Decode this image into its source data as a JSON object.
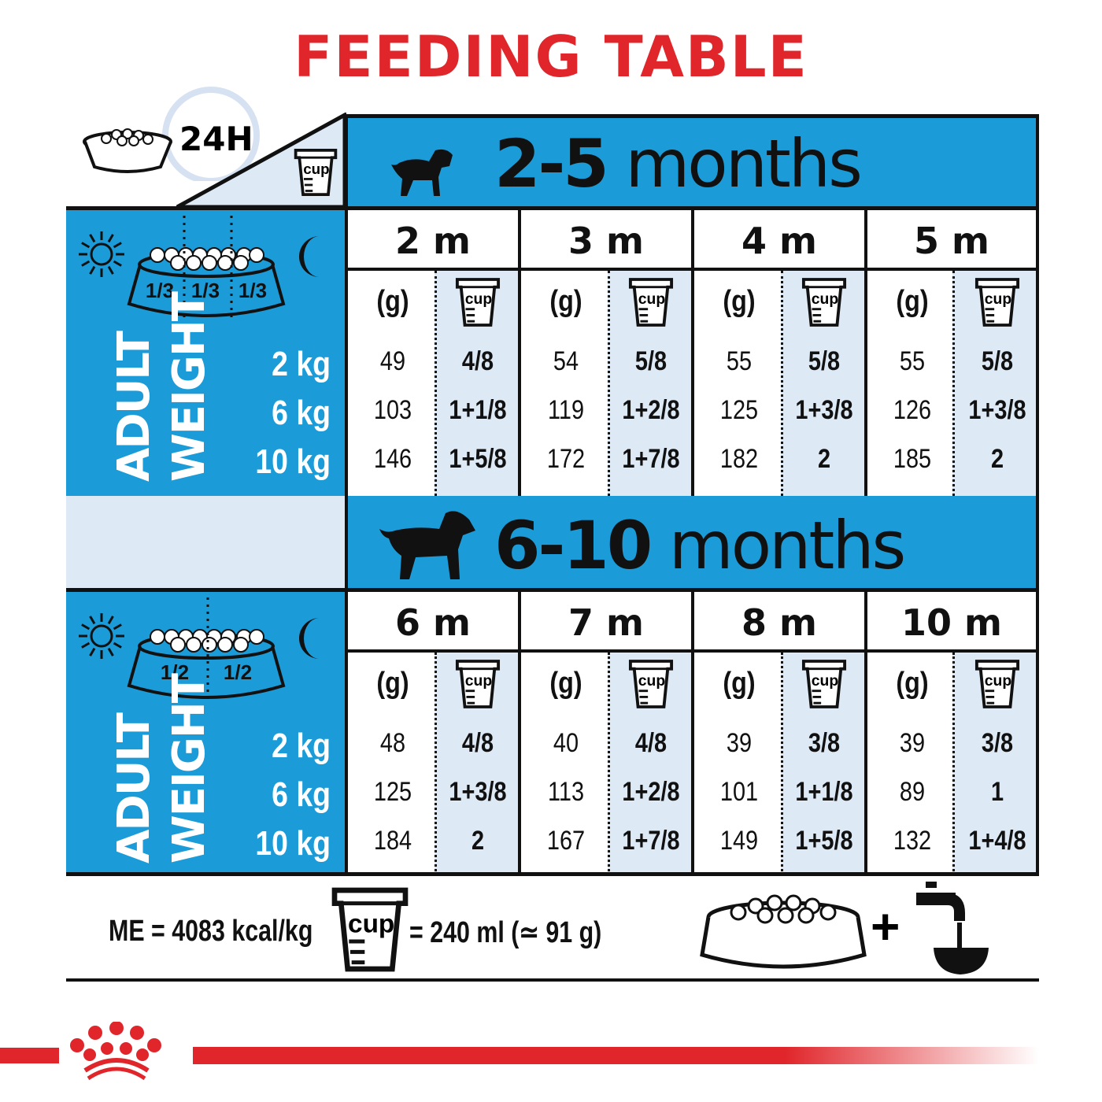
{
  "title": "FEEDING TABLE",
  "header": {
    "duration": "24H",
    "cup_label": "cup"
  },
  "colors": {
    "accent_red": "#e0262b",
    "blue": "#1b9bd7",
    "light_blue": "#dde9f5"
  },
  "sections": [
    {
      "range_number": "2-5",
      "range_unit": "months",
      "portions": [
        "1/3",
        "1/3",
        "1/3"
      ],
      "weight_label": [
        "ADULT",
        "WEIGHT"
      ],
      "weights": [
        "2 kg",
        "6 kg",
        "10 kg"
      ],
      "gram_header": "(g)",
      "months": [
        {
          "label": "2 m",
          "grams": [
            "49",
            "103",
            "146"
          ],
          "cups": [
            "4/8",
            "1+1/8",
            "1+5/8"
          ]
        },
        {
          "label": "3 m",
          "grams": [
            "54",
            "119",
            "172"
          ],
          "cups": [
            "5/8",
            "1+2/8",
            "1+7/8"
          ]
        },
        {
          "label": "4 m",
          "grams": [
            "55",
            "125",
            "182"
          ],
          "cups": [
            "5/8",
            "1+3/8",
            "2"
          ]
        },
        {
          "label": "5 m",
          "grams": [
            "55",
            "126",
            "185"
          ],
          "cups": [
            "5/8",
            "1+3/8",
            "2"
          ]
        }
      ]
    },
    {
      "range_number": "6-10",
      "range_unit": "months",
      "portions": [
        "1/2",
        "1/2"
      ],
      "weight_label": [
        "ADULT",
        "WEIGHT"
      ],
      "weights": [
        "2 kg",
        "6 kg",
        "10 kg"
      ],
      "gram_header": "(g)",
      "months": [
        {
          "label": "6 m",
          "grams": [
            "48",
            "125",
            "184"
          ],
          "cups": [
            "4/8",
            "1+3/8",
            "2"
          ]
        },
        {
          "label": "7 m",
          "grams": [
            "40",
            "113",
            "167"
          ],
          "cups": [
            "4/8",
            "1+2/8",
            "1+7/8"
          ]
        },
        {
          "label": "8 m",
          "grams": [
            "39",
            "101",
            "149"
          ],
          "cups": [
            "3/8",
            "1+1/8",
            "1+5/8"
          ]
        },
        {
          "label": "10 m",
          "grams": [
            "39",
            "89",
            "132"
          ],
          "cups": [
            "3/8",
            "1",
            "1+4/8"
          ]
        }
      ]
    }
  ],
  "footer": {
    "energy": "ME = 4083 kcal/kg",
    "cup_equivalence": "= 240 ml (≃ 91 g)",
    "plus": "+"
  },
  "icons": [
    "bowl-icon",
    "clock-icon",
    "cup-icon",
    "puppy-icon",
    "dog-icon",
    "sun-icon",
    "moon-icon",
    "water-tap-icon",
    "crown-logo-icon"
  ]
}
